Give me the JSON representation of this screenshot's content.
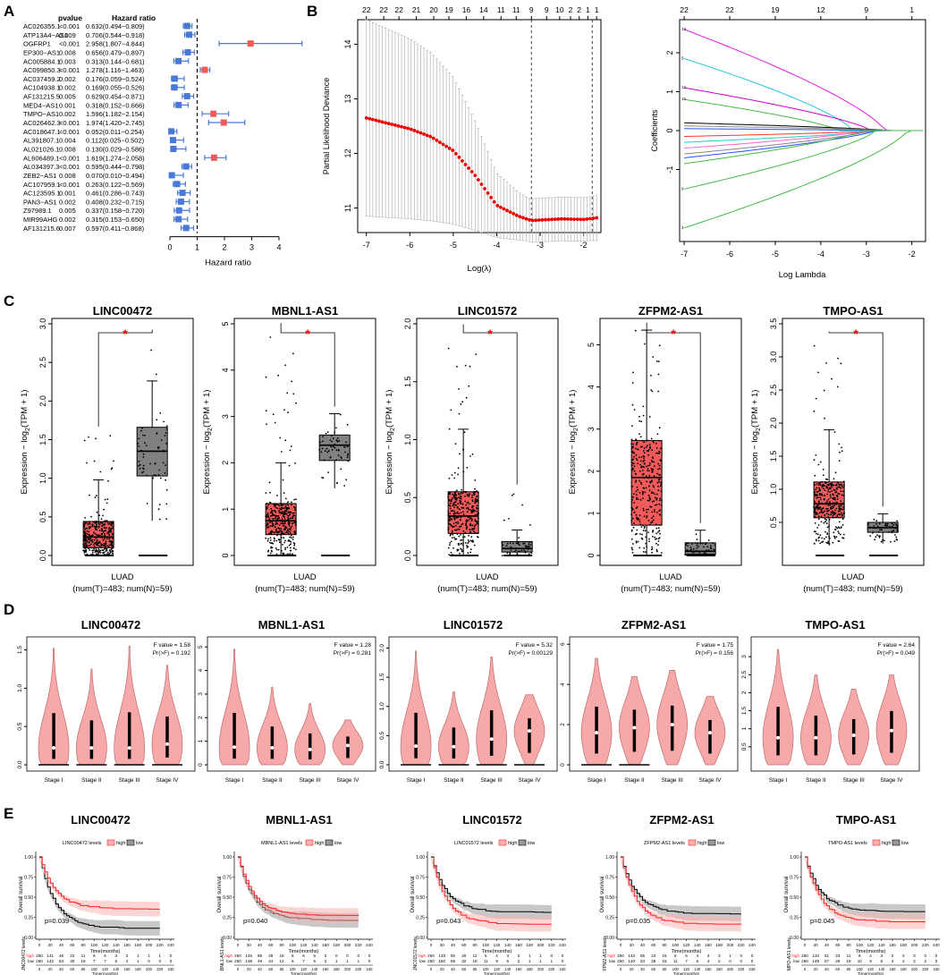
{
  "panels": {
    "A": "A",
    "B": "B",
    "C": "C",
    "D": "D",
    "E": "E"
  },
  "chart_data": [
    {
      "panel": "A",
      "type": "forest",
      "headers": {
        "pvalue": "pvalue",
        "hr": "Hazard ratio"
      },
      "xlabel": "Hazard ratio",
      "xticks": [
        0,
        1,
        2,
        3,
        4
      ],
      "xlim": [
        0,
        4.2
      ],
      "ref": 1,
      "rows": [
        {
          "gene": "AC026355.1",
          "p": "<0.001",
          "hr_text": "0.632(0.494−0.809)",
          "hr": 0.632,
          "lo": 0.494,
          "hi": 0.809
        },
        {
          "gene": "ATP13A4−AS1",
          "p": "0.009",
          "hr_text": "0.706(0.544−0.918)",
          "hr": 0.706,
          "lo": 0.544,
          "hi": 0.918
        },
        {
          "gene": "OGFRP1",
          "p": "<0.001",
          "hr_text": "2.958(1.807−4.844)",
          "hr": 2.958,
          "lo": 1.807,
          "hi": 4.844
        },
        {
          "gene": "EP300−AS1",
          "p": "0.008",
          "hr_text": "0.656(0.479−0.897)",
          "hr": 0.656,
          "lo": 0.479,
          "hi": 0.897
        },
        {
          "gene": "AC005884.1",
          "p": "0.003",
          "hr_text": "0.313(0.144−0.681)",
          "hr": 0.313,
          "lo": 0.144,
          "hi": 0.681
        },
        {
          "gene": "AC099850.3",
          "p": "<0.001",
          "hr_text": "1.278(1.116−1.463)",
          "hr": 1.278,
          "lo": 1.116,
          "hi": 1.463
        },
        {
          "gene": "AC037459.2",
          "p": "0.002",
          "hr_text": "0.176(0.059−0.524)",
          "hr": 0.176,
          "lo": 0.059,
          "hi": 0.524
        },
        {
          "gene": "AC104938.1",
          "p": "0.002",
          "hr_text": "0.169(0.055−0.526)",
          "hr": 0.169,
          "lo": 0.055,
          "hi": 0.526
        },
        {
          "gene": "AF131215.5",
          "p": "0.005",
          "hr_text": "0.629(0.454−0.871)",
          "hr": 0.629,
          "lo": 0.454,
          "hi": 0.871
        },
        {
          "gene": "MED4−AS1",
          "p": "0.001",
          "hr_text": "0.318(0.152−0.666)",
          "hr": 0.318,
          "lo": 0.152,
          "hi": 0.666
        },
        {
          "gene": "TMPO−AS1",
          "p": "0.002",
          "hr_text": "1.596(1.182−2.154)",
          "hr": 1.596,
          "lo": 1.182,
          "hi": 2.154
        },
        {
          "gene": "AC026462.3",
          "p": "<0.001",
          "hr_text": "1.974(1.420−2.745)",
          "hr": 1.974,
          "lo": 1.42,
          "hi": 2.745
        },
        {
          "gene": "AC018647.1",
          "p": "<0.001",
          "hr_text": "0.052(0.011−0.254)",
          "hr": 0.052,
          "lo": 0.011,
          "hi": 0.254
        },
        {
          "gene": "AL391807.1",
          "p": "0.004",
          "hr_text": "0.112(0.025−0.502)",
          "hr": 0.112,
          "lo": 0.025,
          "hi": 0.502
        },
        {
          "gene": "AL021026.1",
          "p": "0.008",
          "hr_text": "0.130(0.029−0.586)",
          "hr": 0.13,
          "lo": 0.029,
          "hi": 0.586
        },
        {
          "gene": "AL606489.1",
          "p": "<0.001",
          "hr_text": "1.619(1.274−2.058)",
          "hr": 1.619,
          "lo": 1.274,
          "hi": 2.058
        },
        {
          "gene": "AL034397.3",
          "p": "<0.001",
          "hr_text": "0.595(0.444−0.798)",
          "hr": 0.595,
          "lo": 0.444,
          "hi": 0.798
        },
        {
          "gene": "ZEB2−AS1",
          "p": "0.008",
          "hr_text": "0.070(0.010−0.494)",
          "hr": 0.07,
          "lo": 0.01,
          "hi": 0.494
        },
        {
          "gene": "AC107959.1",
          "p": "<0.001",
          "hr_text": "0.263(0.122−0.569)",
          "hr": 0.263,
          "lo": 0.122,
          "hi": 0.569
        },
        {
          "gene": "AC123595.1",
          "p": "0.001",
          "hr_text": "0.461(0.286−0.743)",
          "hr": 0.461,
          "lo": 0.286,
          "hi": 0.743
        },
        {
          "gene": "PAN3−AS1",
          "p": "0.002",
          "hr_text": "0.408(0.232−0.715)",
          "hr": 0.408,
          "lo": 0.232,
          "hi": 0.715
        },
        {
          "gene": "Z97989.1",
          "p": "0.005",
          "hr_text": "0.337(0.158−0.720)",
          "hr": 0.337,
          "lo": 0.158,
          "hi": 0.72
        },
        {
          "gene": "MIR99AHG",
          "p": "0.002",
          "hr_text": "0.315(0.153−0.650)",
          "hr": 0.315,
          "lo": 0.153,
          "hi": 0.65
        },
        {
          "gene": "AF131215.6",
          "p": "0.007",
          "hr_text": "0.597(0.411−0.868)",
          "hr": 0.597,
          "lo": 0.411,
          "hi": 0.868
        }
      ]
    },
    {
      "panel": "B-left",
      "type": "line",
      "xlabel": "Log(λ)",
      "ylabel": "Partial Likelihood Deviance",
      "xlim": [
        -7.2,
        -1.6
      ],
      "ylim": [
        10.55,
        14.45
      ],
      "xticks": [
        -7,
        -6,
        -5,
        -4,
        -3,
        -2
      ],
      "yticks": [
        11,
        12,
        13,
        14
      ],
      "top_labels": [
        "22",
        "22",
        "22",
        "21",
        "20",
        "19",
        "16",
        "14",
        "11",
        "11",
        "9",
        "9",
        "10",
        "2",
        "2",
        "1",
        "1"
      ],
      "top_x": [
        -7.0,
        -6.6,
        -6.25,
        -5.85,
        -5.45,
        -5.1,
        -4.7,
        -4.3,
        -3.9,
        -3.55,
        -3.2,
        -2.85,
        -2.55,
        -2.3,
        -2.1,
        -1.9,
        -1.7
      ],
      "vlines": [
        -3.2,
        -1.8
      ],
      "curve_x": [
        -7,
        -6.5,
        -6,
        -5.5,
        -5,
        -4.5,
        -4,
        -3.5,
        -3.2,
        -3.0,
        -2.5,
        -2.0,
        -1.7
      ],
      "curve_y": [
        12.65,
        12.55,
        12.45,
        12.3,
        12.05,
        11.6,
        11.05,
        10.85,
        10.77,
        10.78,
        10.8,
        10.79,
        10.82
      ]
    },
    {
      "panel": "B-right",
      "type": "line",
      "xlabel": "Log Lambda",
      "ylabel": "Coefficients",
      "xlim": [
        -7.1,
        -1.7
      ],
      "ylim": [
        -2.85,
        2.85
      ],
      "xticks": [
        -7,
        -6,
        -5,
        -4,
        -3,
        -2
      ],
      "yticks": [
        -1,
        0,
        1,
        2
      ],
      "top_labels": [
        "22",
        "22",
        "19",
        "12",
        "9",
        "1"
      ],
      "top_x": [
        -7,
        -6,
        -5,
        -4,
        -3,
        -2
      ],
      "series": [
        {
          "start": 2.6,
          "lambda0": -2.6,
          "color": "#e020e0",
          "tag": "19"
        },
        {
          "start": 1.85,
          "lambda0": -3.3,
          "color": "#22c4e0",
          "tag": "5"
        },
        {
          "start": 1.1,
          "lambda0": -2.9,
          "color": "#cc00cc",
          "tag": "12"
        },
        {
          "start": 0.8,
          "lambda0": -3.6,
          "color": "#44bb44",
          "tag": "15"
        },
        {
          "start": 0.2,
          "lambda0": -2.5,
          "color": "#000000",
          "tag": ""
        },
        {
          "start": 0.12,
          "lambda0": -2.4,
          "color": "#888888",
          "tag": ""
        },
        {
          "start": 0.05,
          "lambda0": -2.6,
          "color": "#2255ff",
          "tag": ""
        },
        {
          "start": -0.15,
          "lambda0": -2.6,
          "color": "#ff3333",
          "tag": ""
        },
        {
          "start": -0.3,
          "lambda0": -2.7,
          "color": "#22cccc",
          "tag": ""
        },
        {
          "start": -0.45,
          "lambda0": -3.0,
          "color": "#ff66cc",
          "tag": ""
        },
        {
          "start": -0.6,
          "lambda0": -2.9,
          "color": "#888888",
          "tag": ""
        },
        {
          "start": -0.7,
          "lambda0": -2.8,
          "color": "#2255ff",
          "tag": ""
        },
        {
          "start": -0.85,
          "lambda0": -3.1,
          "color": "#44bb44",
          "tag": ""
        },
        {
          "start": -1.5,
          "lambda0": -2.8,
          "color": "#44bb44",
          "tag": "9"
        },
        {
          "start": -2.5,
          "lambda0": -2.1,
          "color": "#44bb44",
          "tag": "3"
        }
      ]
    },
    {
      "panel": "C",
      "type": "boxplot",
      "subplots": [
        {
          "title": "LINC00472",
          "ylim": [
            0,
            3.0
          ],
          "yticks": [
            0.0,
            0.5,
            1.0,
            1.5,
            2.0,
            2.5,
            3.0
          ],
          "tumor": {
            "q1": 0.1,
            "med": 0.24,
            "q3": 0.44,
            "wlo": 0,
            "whi": 0.98,
            "max": 1.6
          },
          "normal": {
            "q1": 1.03,
            "med": 1.35,
            "q3": 1.66,
            "wlo": 0.45,
            "whi": 2.26,
            "max": 2.83
          }
        },
        {
          "title": "MBNL1-AS1",
          "ylim": [
            0,
            5.0
          ],
          "yticks": [
            0,
            1,
            2,
            3,
            4,
            5
          ],
          "tumor": {
            "q1": 0.45,
            "med": 0.75,
            "q3": 1.12,
            "wlo": 0,
            "whi": 2.0,
            "max": 4.9
          },
          "normal": {
            "q1": 2.05,
            "med": 2.38,
            "q3": 2.6,
            "wlo": 1.45,
            "whi": 3.06,
            "max": 3.06
          }
        },
        {
          "title": "LINC01572",
          "ylim": [
            0,
            2.0
          ],
          "yticks": [
            0.0,
            0.5,
            1.0,
            1.5,
            2.0
          ],
          "tumor": {
            "q1": 0.19,
            "med": 0.34,
            "q3": 0.55,
            "wlo": 0,
            "whi": 1.09,
            "max": 1.95
          },
          "normal": {
            "q1": 0.03,
            "med": 0.06,
            "q3": 0.12,
            "wlo": 0,
            "whi": 0.22,
            "max": 0.55
          }
        },
        {
          "title": "ZFPM2-AS1",
          "ylim": [
            0,
            5.5
          ],
          "yticks": [
            0,
            1,
            2,
            3,
            4,
            5
          ],
          "tumor": {
            "q1": 0.72,
            "med": 1.85,
            "q3": 2.73,
            "wlo": 0,
            "whi": 5.35,
            "max": 5.4
          },
          "normal": {
            "q1": 0.03,
            "med": 0.1,
            "q3": 0.3,
            "wlo": 0,
            "whi": 0.6,
            "max": 0.6
          }
        },
        {
          "title": "TMPO-AS1",
          "ylim": [
            0,
            3.5
          ],
          "yticks": [
            0.5,
            1.0,
            1.5,
            2.0,
            2.5,
            3.0,
            3.5
          ],
          "tumor": {
            "q1": 0.57,
            "med": 0.78,
            "q3": 1.11,
            "wlo": 0.15,
            "whi": 1.9,
            "max": 3.3
          },
          "normal": {
            "q1": 0.35,
            "med": 0.42,
            "q3": 0.5,
            "wlo": 0.18,
            "whi": 0.63,
            "max": 0.63
          }
        }
      ],
      "star": "*",
      "ylabel_prefix": "Expression − log",
      "ylabel_sub": "2",
      "ylabel_suffix": "(TPM + 1)",
      "xlabel": "LUAD",
      "xsub": "(num(T)=483; num(N)=59)"
    },
    {
      "panel": "D",
      "type": "violin",
      "stages": [
        "Stage I",
        "Stage II",
        "Stage III",
        "Stage IV"
      ],
      "subplots": [
        {
          "title": "LINC00472",
          "ylim": [
            0,
            1.6
          ],
          "yticks": [
            0.0,
            0.5,
            1.0,
            1.5
          ],
          "f": "F value = 1.58",
          "p": "Pr(>F) = 0.192",
          "maxes": [
            1.52,
            1.25,
            1.55,
            1.3
          ],
          "meds": [
            0.22,
            0.22,
            0.22,
            0.27
          ]
        },
        {
          "title": "MBNL1-AS1",
          "ylim": [
            0,
            5.2
          ],
          "yticks": [
            0,
            1,
            2,
            3,
            4,
            5
          ],
          "f": "F value = 1.28",
          "p": "Pr(>F) = 0.281",
          "maxes": [
            4.9,
            3.3,
            2.6,
            1.9
          ],
          "meds": [
            0.75,
            0.72,
            0.65,
            0.82
          ]
        },
        {
          "title": "LINC01572",
          "ylim": [
            0,
            2.1
          ],
          "yticks": [
            0.0,
            0.5,
            1.0,
            1.5,
            2.0
          ],
          "f": "F value = 5.32",
          "p": "Pr(>F) = 0.00129",
          "maxes": [
            1.95,
            1.25,
            1.85,
            1.2
          ],
          "meds": [
            0.32,
            0.31,
            0.44,
            0.58
          ]
        },
        {
          "title": "ZFPM2-AS1",
          "ylim": [
            0,
            6.1
          ],
          "yticks": [
            0,
            2,
            4,
            6
          ],
          "f": "F value = 1.75",
          "p": "Pr(>F) = 0.156",
          "maxes": [
            5.3,
            4.4,
            4.7,
            3.4
          ],
          "meds": [
            1.6,
            1.85,
            2.0,
            1.6
          ]
        },
        {
          "title": "TMPO-AS1",
          "ylim": [
            0,
            3.4
          ],
          "yticks": [
            0.5,
            1.0,
            1.5,
            2.0,
            2.5,
            3.0
          ],
          "f": "F value = 2.64",
          "p": "Pr(>F) = 0.049",
          "maxes": [
            3.2,
            2.5,
            2.1,
            2.5
          ],
          "meds": [
            0.75,
            0.75,
            0.82,
            0.95
          ]
        }
      ]
    },
    {
      "panel": "E",
      "type": "kaplan-meier",
      "ylabel": "Overall survival",
      "xlabel": "Time(months)",
      "xticks": [
        0,
        20,
        40,
        60,
        80,
        100,
        120,
        140,
        160,
        180,
        200,
        220,
        240
      ],
      "yticks": [
        "0.00",
        "0.25",
        "0.50",
        "0.75",
        "1.00"
      ],
      "legend_high": "high",
      "legend_low": "low",
      "subplots": [
        {
          "title": "LINC00472",
          "legend": "LINC00472 levels",
          "p": "p=0.039",
          "risk_label": "JNC00472 levels",
          "high": "250 141 46 22 11 9 6 3 2 1 1 1 0",
          "low": "250 142 63 30 19 7 7 6 2 1 0 0 0",
          "high_end": 0.36,
          "low_end": 0.12
        },
        {
          "title": "MBNL1-AS1",
          "legend": "MBNL1-AS1 levels",
          "p": "p=0.040",
          "risk_label": "BNL1-AS1 levels",
          "high": "250 145 59 28 18 8 6 5 2 0 0 0 0",
          "low": "250 138 49 24 12 8 7 5 2 1 1 1 0",
          "high_end": 0.28,
          "low_end": 0.22
        },
        {
          "title": "LINC01572",
          "legend": "LINC01572 levels",
          "p": "p=0.043",
          "risk_label": "JNC01572 levels",
          "high": "250 133 50 20 12 5 4 3 2 1 1 0 0",
          "low": "250 150 58 32 18 11 9 6 2 1 1 1 0",
          "high_end": 0.17,
          "low_end": 0.32
        },
        {
          "title": "ZFPM2-AS1",
          "legend": "ZFPM2-AS1 levels",
          "p": "p=0.035",
          "risk_label": "FPM2-AS1 levels",
          "high": "250 143 55 24 15 6 6 4 3 3 1 0 0",
          "low": "250 140 53 28 15 11 7 6 4 2 0 0 0",
          "high_end": 0.17,
          "low_end": 0.3
        },
        {
          "title": "TMPO-AS1",
          "legend": "TMPO-AS1 levels",
          "p": "p=0.045",
          "risk_label": "MPO-AS1 levels",
          "high": "250 134 51 23 11 6 4 3 2 0 0 0 0",
          "low": "250 149 57 29 19 10 9 6 3 2 2 2 0",
          "high_end": 0.2,
          "low_end": 0.33
        }
      ]
    }
  ],
  "colors": {
    "red": "#f05a5a",
    "redStroke": "#c02525",
    "grey": "#808080",
    "blue": "#4a78d9",
    "violin": "#f7a9a9",
    "violinStroke": "#c06b6b",
    "kmRed": "#ff2020",
    "kmRedBand": "#ffb0b0",
    "kmGreyBand": "#9a9a9a",
    "star": "#ff0000"
  }
}
